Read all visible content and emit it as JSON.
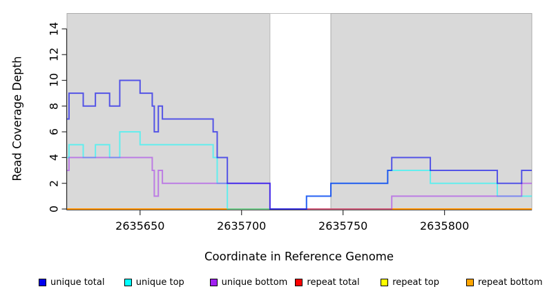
{
  "chart_data": {
    "type": "line",
    "subtype": "step",
    "title": "",
    "xlabel": "Coordinate in Reference Genome",
    "ylabel": "Read Coverage Depth",
    "xlim": [
      2635614,
      2635843
    ],
    "ylim": [
      0,
      15.2
    ],
    "x_ticks": [
      2635650,
      2635700,
      2635750,
      2635800
    ],
    "y_ticks": [
      0,
      2,
      4,
      6,
      8,
      10,
      12,
      14
    ],
    "grid": false,
    "legend_position": "bottom",
    "background_regions": [
      {
        "name": "unique-region-left",
        "start": 2635614,
        "end": 2635714,
        "fill": "#d9d9d9",
        "stroke": "#ababab"
      },
      {
        "name": "repeat-region-gap",
        "start": 2635714,
        "end": 2635744,
        "fill": "#ffffff",
        "stroke": "#bdbdbd"
      },
      {
        "name": "unique-region-right",
        "start": 2635744,
        "end": 2635843,
        "fill": "#d9d9d9",
        "stroke": "#ababab"
      }
    ],
    "series": [
      {
        "name": "unique total",
        "legend_color": "#0000ee",
        "stroke": "rgba(0,0,238,0.62)",
        "breakpoints": [
          [
            2635614,
            7
          ],
          [
            2635615,
            9
          ],
          [
            2635622,
            8
          ],
          [
            2635628,
            9
          ],
          [
            2635635,
            8
          ],
          [
            2635640,
            10
          ],
          [
            2635650,
            9
          ],
          [
            2635656,
            8
          ],
          [
            2635657,
            6
          ],
          [
            2635659,
            8
          ],
          [
            2635661,
            7
          ],
          [
            2635686,
            6
          ],
          [
            2635688,
            4
          ],
          [
            2635693,
            2
          ],
          [
            2635714,
            0
          ],
          [
            2635732,
            1
          ],
          [
            2635744,
            2
          ],
          [
            2635772,
            3
          ],
          [
            2635774,
            4
          ],
          [
            2635793,
            3
          ],
          [
            2635826,
            2
          ],
          [
            2635838,
            3
          ]
        ]
      },
      {
        "name": "unique top",
        "legend_color": "#00ffff",
        "stroke": "rgba(0,255,255,0.55)",
        "breakpoints": [
          [
            2635614,
            4
          ],
          [
            2635615,
            5
          ],
          [
            2635622,
            4
          ],
          [
            2635628,
            5
          ],
          [
            2635635,
            4
          ],
          [
            2635640,
            6
          ],
          [
            2635650,
            5
          ],
          [
            2635686,
            4
          ],
          [
            2635688,
            2
          ],
          [
            2635693,
            0
          ],
          [
            2635732,
            1
          ],
          [
            2635744,
            2
          ],
          [
            2635772,
            3
          ],
          [
            2635793,
            2
          ],
          [
            2635826,
            1
          ]
        ]
      },
      {
        "name": "unique bottom",
        "legend_color": "#a020f0",
        "stroke": "rgba(160,32,240,0.5)",
        "breakpoints": [
          [
            2635614,
            3
          ],
          [
            2635615,
            4
          ],
          [
            2635656,
            3
          ],
          [
            2635657,
            1
          ],
          [
            2635659,
            3
          ],
          [
            2635661,
            2
          ],
          [
            2635714,
            0
          ],
          [
            2635774,
            1
          ],
          [
            2635838,
            2
          ]
        ]
      },
      {
        "name": "repeat total",
        "legend_color": "#ff0000",
        "stroke": "rgba(255,0,0,0.9)",
        "breakpoints": [
          [
            2635614,
            0
          ]
        ]
      },
      {
        "name": "repeat top",
        "legend_color": "#ffff00",
        "stroke": "rgba(255,255,0,0.9)",
        "breakpoints": [
          [
            2635614,
            0
          ]
        ]
      },
      {
        "name": "repeat bottom",
        "legend_color": "#ffa500",
        "stroke": "#ff9100",
        "breakpoints": [
          [
            2635614,
            0
          ]
        ]
      }
    ],
    "draw_order": [
      "repeat total",
      "repeat top",
      "repeat bottom",
      "unique top",
      "unique bottom",
      "unique total"
    ]
  }
}
